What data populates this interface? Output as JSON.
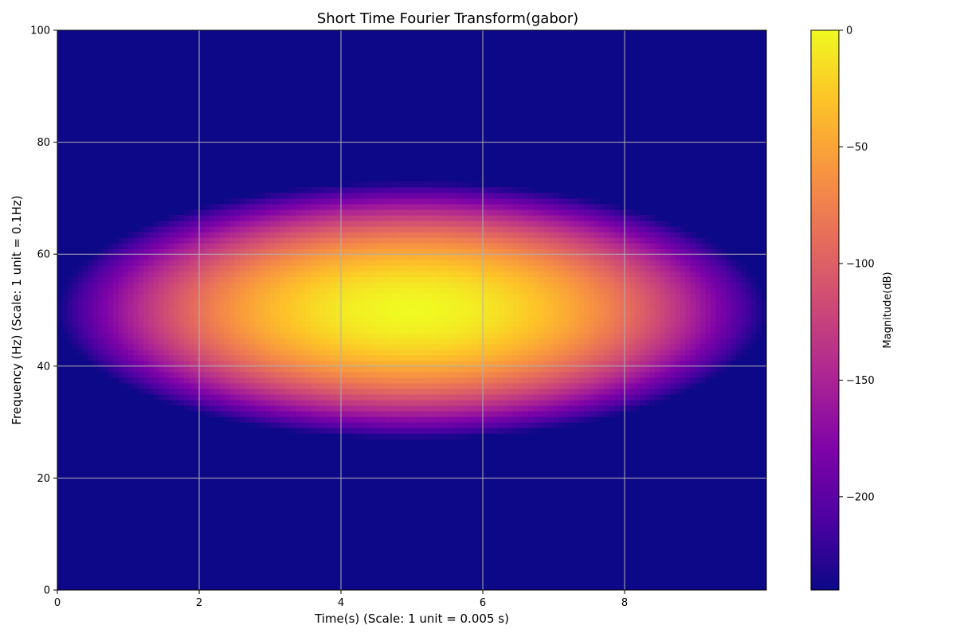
{
  "chart_data": {
    "type": "heatmap",
    "title": "Short Time Fourier Transform(gabor)",
    "xlabel": "Time(s) (Scale: 1 unit = 0.005 s)",
    "ylabel": "Frequency (Hz) (Scale: 1 unit = 0.1Hz)",
    "xlim": [
      0,
      10
    ],
    "ylim": [
      0,
      100
    ],
    "xticks": [
      0,
      2,
      4,
      6,
      8
    ],
    "yticks": [
      0,
      20,
      40,
      60,
      80,
      100
    ],
    "grid": true,
    "colormap": "plasma",
    "colorbar": {
      "label": "Magnitude(dB)",
      "range": [
        -240,
        0
      ],
      "ticks": [
        0,
        -50,
        -100,
        -150,
        -200
      ],
      "tick_labels": [
        "0",
        "−50",
        "−100",
        "−150",
        "−200"
      ]
    },
    "peak": {
      "time": 5,
      "frequency": 50,
      "magnitude_db": 0
    },
    "pattern": "Gaussian blob centered near time 5, frequency 50; magnitude falls toward -240 dB away from the center",
    "blob_extent": {
      "time": [
        0,
        10
      ],
      "frequency": [
        27,
        73
      ]
    }
  }
}
